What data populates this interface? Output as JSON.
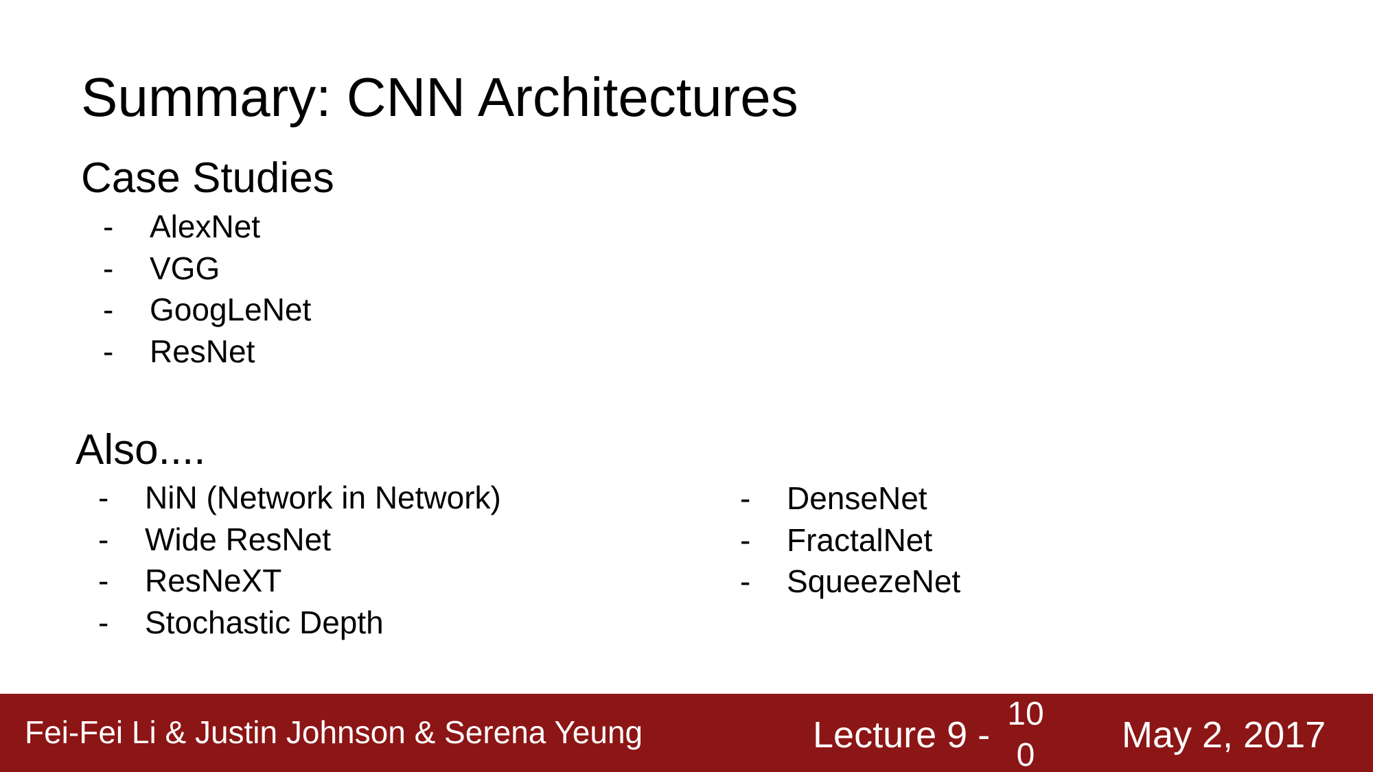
{
  "title": "Summary: CNN Architectures",
  "case_studies": {
    "heading": "Case Studies",
    "items": [
      {
        "bullet": "-",
        "label": "AlexNet"
      },
      {
        "bullet": "-",
        "label": "VGG"
      },
      {
        "bullet": "-",
        "label": "GoogLeNet"
      },
      {
        "bullet": "-",
        "label": "ResNet"
      }
    ]
  },
  "also": {
    "heading": "Also....",
    "left_items": [
      {
        "bullet": "-",
        "label": "NiN (Network in Network)"
      },
      {
        "bullet": "-",
        "label": "Wide ResNet"
      },
      {
        "bullet": "-",
        "label": "ResNeXT"
      },
      {
        "bullet": "-",
        "label": "Stochastic Depth"
      }
    ],
    "right_items": [
      {
        "bullet": "-",
        "label": "DenseNet"
      },
      {
        "bullet": "-",
        "label": "FractalNet"
      },
      {
        "bullet": "-",
        "label": "SqueezeNet"
      }
    ]
  },
  "footer": {
    "authors": "Fei-Fei Li & Justin Johnson & Serena Yeung",
    "lecture": "Lecture 9 -",
    "page_number": "100",
    "date": "May 2, 2017",
    "background_color": "#8c1515",
    "text_color": "#ffffff"
  }
}
